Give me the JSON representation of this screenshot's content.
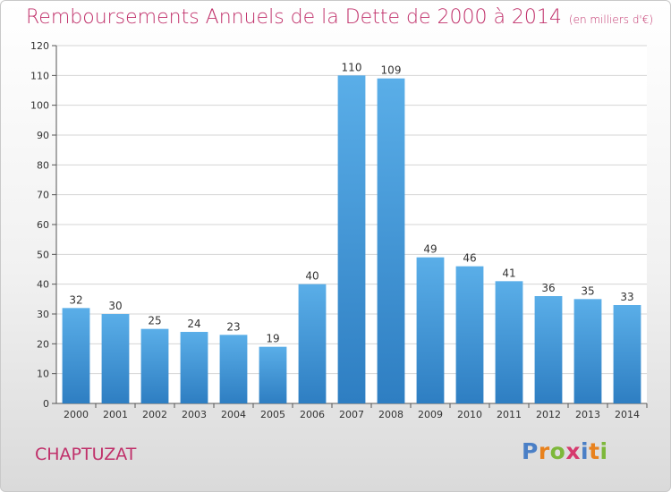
{
  "chart_data": {
    "type": "bar",
    "title": "Remboursements Annuels de la Dette de 2000 à 2014",
    "subtitle": "(en milliers d'€)",
    "categories": [
      "2000",
      "2001",
      "2002",
      "2003",
      "2004",
      "2005",
      "2006",
      "2007",
      "2008",
      "2009",
      "2010",
      "2011",
      "2012",
      "2013",
      "2014"
    ],
    "values": [
      32,
      30,
      25,
      24,
      23,
      19,
      40,
      110,
      109,
      49,
      46,
      41,
      36,
      35,
      33
    ],
    "xlabel": "",
    "ylabel": "",
    "ylim": [
      0,
      120
    ],
    "yticks": [
      0,
      10,
      20,
      30,
      40,
      50,
      60,
      70,
      80,
      90,
      100,
      110,
      120
    ],
    "grid": true,
    "colors": {
      "bar_light": "#5aaee8",
      "bar_dark": "#2e7ec2",
      "title": "#c0306a"
    }
  },
  "commune": "CHAPTUZAT",
  "logo": {
    "letters": [
      "P",
      "r",
      "o",
      "x",
      "i",
      "t",
      "i"
    ],
    "colors": [
      "#4a7fc6",
      "#e8821e",
      "#7db83a",
      "#d63a6e",
      "#4a7fc6",
      "#e8821e",
      "#7db83a"
    ]
  }
}
